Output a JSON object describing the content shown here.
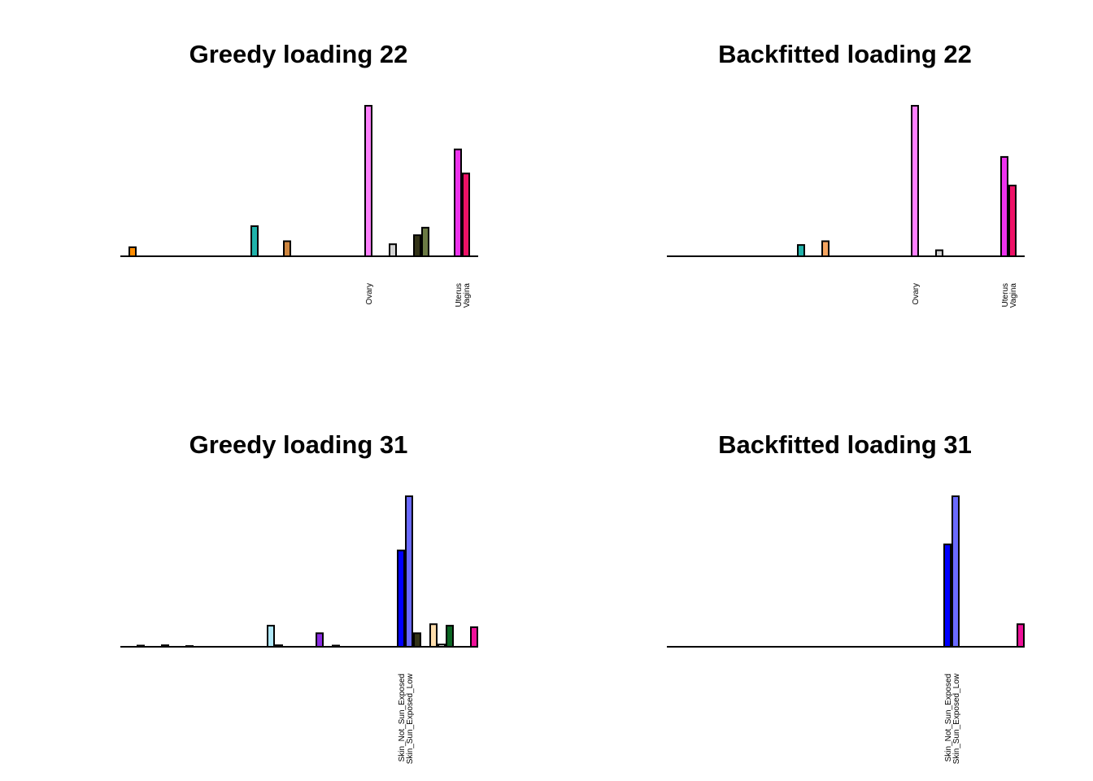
{
  "chart_data": [
    {
      "type": "bar",
      "title": "Greedy loading 22",
      "xlabel": "",
      "ylabel": "",
      "axes": false,
      "grid": false,
      "legend": "none",
      "ylim": [
        0,
        1
      ],
      "n_bars": 44,
      "labeled_categories": [
        {
          "index": 30,
          "label": "Ovary"
        },
        {
          "index": 41,
          "label": "Uterus"
        },
        {
          "index": 42,
          "label": "Vagina"
        }
      ],
      "bars": [
        {
          "index": 1,
          "value": 0.06,
          "color": "#ff8c00"
        },
        {
          "index": 16,
          "value": 0.2,
          "color": "#20b2aa"
        },
        {
          "index": 20,
          "value": 0.1,
          "color": "#cd853f"
        },
        {
          "index": 30,
          "value": 1.0,
          "color": "#ff80ff"
        },
        {
          "index": 33,
          "value": 0.08,
          "color": "#d3d3d3"
        },
        {
          "index": 36,
          "value": 0.14,
          "color": "#333318"
        },
        {
          "index": 37,
          "value": 0.19,
          "color": "#6b7a44"
        },
        {
          "index": 41,
          "value": 0.71,
          "color": "#ee33ee"
        },
        {
          "index": 42,
          "value": 0.55,
          "color": "#ee1166"
        }
      ]
    },
    {
      "type": "bar",
      "title": "Backfitted loading 22",
      "xlabel": "",
      "ylabel": "",
      "axes": false,
      "grid": false,
      "legend": "none",
      "ylim": [
        0,
        1
      ],
      "n_bars": 44,
      "labeled_categories": [
        {
          "index": 30,
          "label": "Ovary"
        },
        {
          "index": 41,
          "label": "Uterus"
        },
        {
          "index": 42,
          "label": "Vagina"
        }
      ],
      "bars": [
        {
          "index": 16,
          "value": 0.075,
          "color": "#20b2aa"
        },
        {
          "index": 19,
          "value": 0.1,
          "color": "#f4a460"
        },
        {
          "index": 30,
          "value": 1.0,
          "color": "#ff80ff"
        },
        {
          "index": 33,
          "value": 0.04,
          "color": "#d3d3d3"
        },
        {
          "index": 41,
          "value": 0.66,
          "color": "#ee33ee"
        },
        {
          "index": 42,
          "value": 0.47,
          "color": "#ee1166"
        }
      ]
    },
    {
      "type": "bar",
      "title": "Greedy loading 31",
      "xlabel": "",
      "ylabel": "",
      "axes": false,
      "grid": false,
      "legend": "none",
      "ylim": [
        0,
        1
      ],
      "n_bars": 44,
      "labeled_categories": [
        {
          "index": 34,
          "label": "Skin_Not_Sun_Exposed"
        },
        {
          "index": 35,
          "label": "Skin_Sun_Exposed_Low"
        }
      ],
      "bars": [
        {
          "index": 2,
          "value": 0.008,
          "color": "#8b4513"
        },
        {
          "index": 5,
          "value": 0.01,
          "color": "#8b0000"
        },
        {
          "index": 8,
          "value": 0.005,
          "color": "#2f4f4f"
        },
        {
          "index": 18,
          "value": 0.14,
          "color": "#b0e8f8"
        },
        {
          "index": 19,
          "value": 0.01,
          "color": "#228b22"
        },
        {
          "index": 24,
          "value": 0.09,
          "color": "#8a2be2"
        },
        {
          "index": 26,
          "value": 0.008,
          "color": "#556b2f"
        },
        {
          "index": 34,
          "value": 0.64,
          "color": "#0000ff"
        },
        {
          "index": 35,
          "value": 1.0,
          "color": "#6a6aff"
        },
        {
          "index": 36,
          "value": 0.09,
          "color": "#333318"
        },
        {
          "index": 38,
          "value": 0.15,
          "color": "#ffdead"
        },
        {
          "index": 39,
          "value": 0.015,
          "color": "#ffffff"
        },
        {
          "index": 40,
          "value": 0.14,
          "color": "#0b6623"
        },
        {
          "index": 43,
          "value": 0.13,
          "color": "#ee1199"
        }
      ]
    },
    {
      "type": "bar",
      "title": "Backfitted loading 31",
      "xlabel": "",
      "ylabel": "",
      "axes": false,
      "grid": false,
      "legend": "none",
      "ylim": [
        0,
        1
      ],
      "n_bars": 44,
      "labeled_categories": [
        {
          "index": 34,
          "label": "Skin_Not_Sun_Exposed"
        },
        {
          "index": 35,
          "label": "Skin_Sun_Exposed_Low"
        }
      ],
      "bars": [
        {
          "index": 34,
          "value": 0.68,
          "color": "#0000ff"
        },
        {
          "index": 35,
          "value": 1.0,
          "color": "#6a6aff"
        },
        {
          "index": 43,
          "value": 0.15,
          "color": "#ee1199"
        }
      ]
    }
  ]
}
